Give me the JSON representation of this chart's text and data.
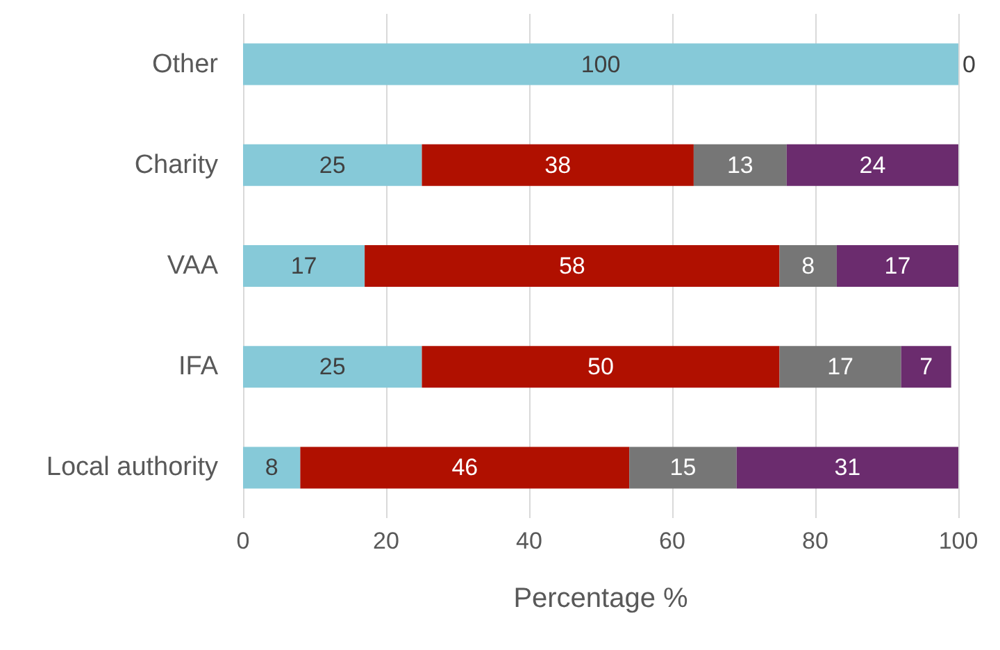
{
  "chart_data": {
    "type": "bar",
    "orientation": "horizontal",
    "stacked": true,
    "xlabel": "Percentage %",
    "categories": [
      "Other",
      "Charity",
      "VAA",
      "IFA",
      "Local authority"
    ],
    "series": [
      {
        "color": "#86c9d8",
        "values": [
          100,
          25,
          17,
          25,
          8
        ],
        "value_labels": [
          "100",
          "25",
          "17",
          "25",
          "8"
        ]
      },
      {
        "color": "#b01000",
        "values": [
          0,
          38,
          58,
          50,
          46
        ],
        "value_labels": [
          "0",
          "38",
          "58",
          "50",
          "46"
        ]
      },
      {
        "color": "#767676",
        "values": [
          0,
          13,
          8,
          17,
          15
        ],
        "value_labels": [
          null,
          "13",
          "8",
          "17",
          "15"
        ]
      },
      {
        "color": "#6b2c6e",
        "values": [
          0,
          24,
          17,
          7,
          31
        ],
        "value_labels": [
          null,
          "24",
          "17",
          "7",
          "31"
        ]
      }
    ],
    "xlim": [
      0,
      100
    ],
    "xticks": [
      0,
      20,
      40,
      60,
      80,
      100
    ],
    "grid": "x"
  }
}
